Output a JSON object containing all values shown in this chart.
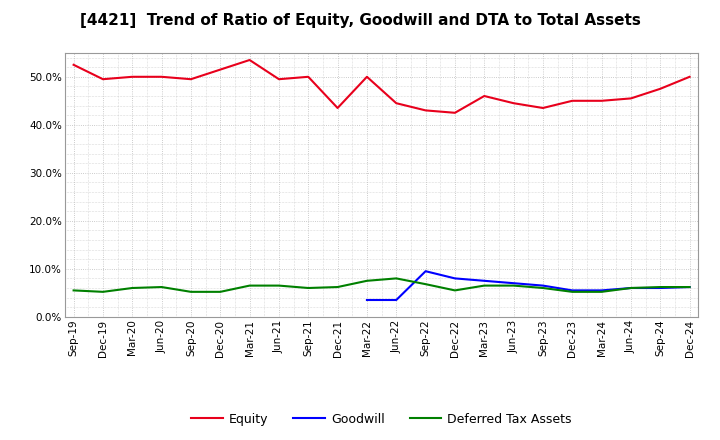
{
  "title": "[4421]  Trend of Ratio of Equity, Goodwill and DTA to Total Assets",
  "x_labels": [
    "Sep-19",
    "Dec-19",
    "Mar-20",
    "Jun-20",
    "Sep-20",
    "Dec-20",
    "Mar-21",
    "Jun-21",
    "Sep-21",
    "Dec-21",
    "Mar-22",
    "Jun-22",
    "Sep-22",
    "Dec-22",
    "Mar-23",
    "Jun-23",
    "Sep-23",
    "Dec-23",
    "Mar-24",
    "Jun-24",
    "Sep-24",
    "Dec-24"
  ],
  "equity": [
    52.5,
    49.5,
    50.0,
    50.0,
    49.5,
    51.5,
    53.5,
    49.5,
    50.0,
    43.5,
    50.0,
    44.5,
    43.0,
    42.5,
    46.0,
    44.5,
    43.5,
    45.0,
    45.0,
    45.5,
    47.5,
    50.0
  ],
  "goodwill": [
    null,
    null,
    null,
    null,
    null,
    null,
    null,
    null,
    null,
    null,
    3.5,
    3.5,
    9.5,
    8.0,
    7.5,
    7.0,
    6.5,
    5.5,
    5.5,
    6.0,
    6.0,
    6.2
  ],
  "dta": [
    5.5,
    5.2,
    6.0,
    6.2,
    5.2,
    5.2,
    6.5,
    6.5,
    6.0,
    6.2,
    7.5,
    8.0,
    6.8,
    5.5,
    6.5,
    6.5,
    6.0,
    5.2,
    5.2,
    6.0,
    6.2,
    6.2
  ],
  "equity_color": "#e8001c",
  "goodwill_color": "#0000ff",
  "dta_color": "#008000",
  "ylim": [
    0.0,
    55.0
  ],
  "yticks": [
    0,
    10,
    20,
    30,
    40,
    50
  ],
  "background_color": "#ffffff",
  "plot_bg_color": "#ffffff",
  "grid_color": "#bbbbbb",
  "legend_labels": [
    "Equity",
    "Goodwill",
    "Deferred Tax Assets"
  ],
  "title_fontsize": 11,
  "tick_fontsize": 7.5
}
